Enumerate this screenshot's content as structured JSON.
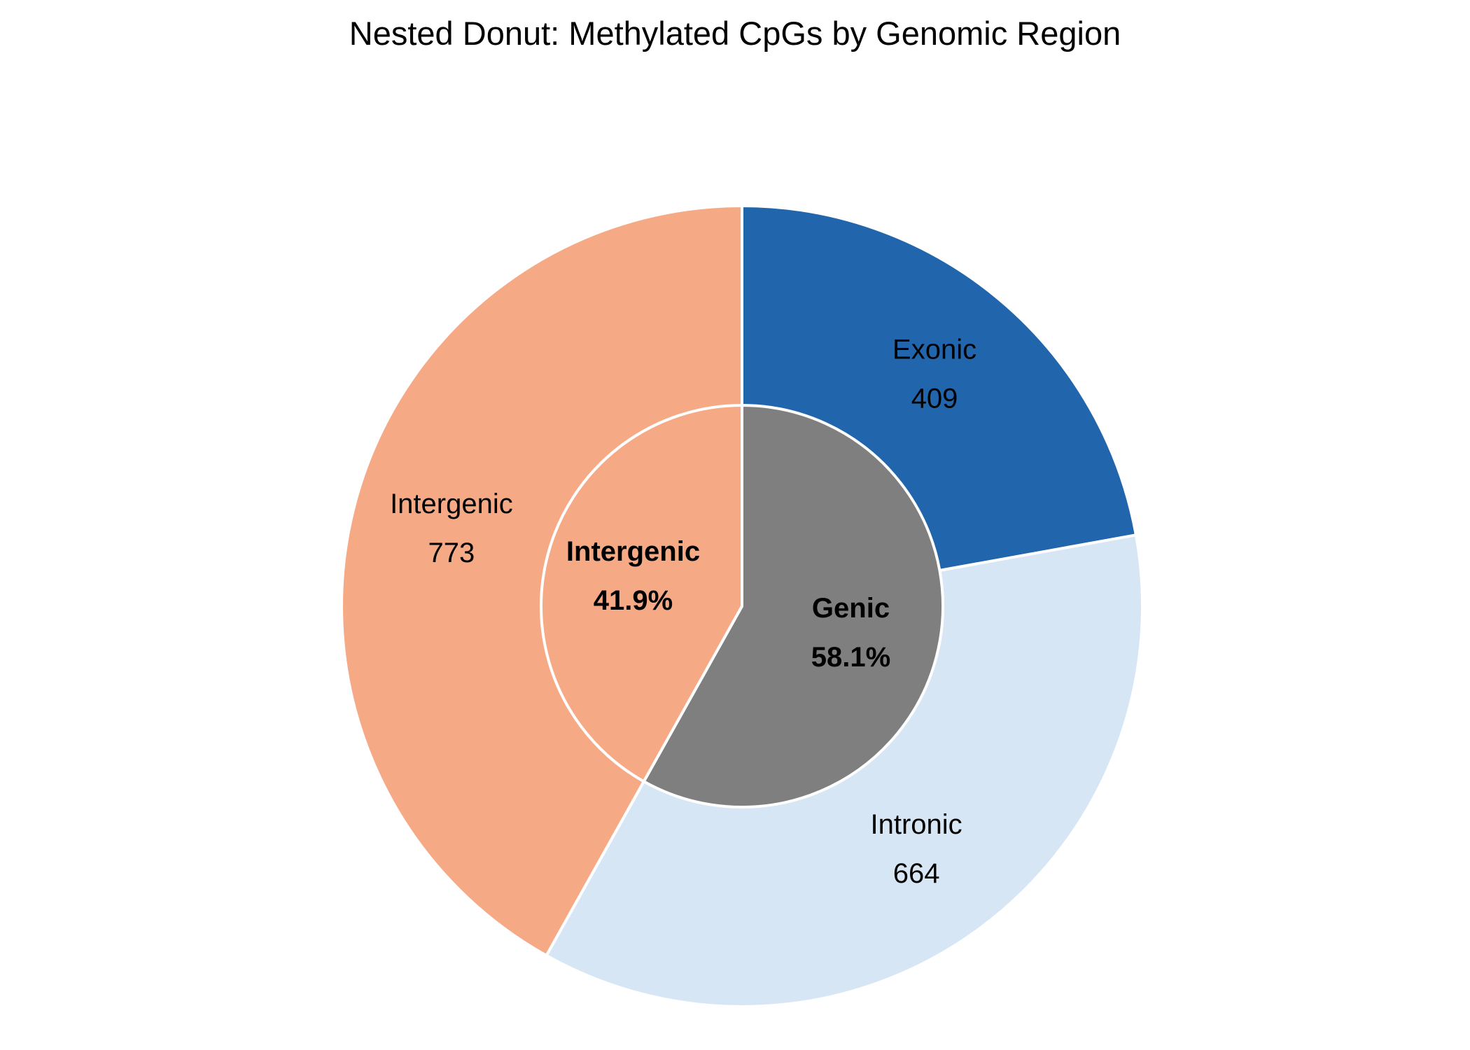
{
  "chart_data": {
    "type": "pie",
    "title": "Nested Donut: Methylated CpGs by Genomic Region",
    "outer_ring": [
      {
        "label": "Exonic",
        "value": 409,
        "value_label": "409",
        "color": "#2166ac"
      },
      {
        "label": "Intronic",
        "value": 664,
        "value_label": "664",
        "color": "#d6e6f5"
      },
      {
        "label": "Intergenic",
        "value": 773,
        "value_label": "773",
        "color": "#f6a985"
      }
    ],
    "inner_ring": [
      {
        "label": "Genic",
        "value": 1073,
        "percent_label": "58.1%",
        "color": "#7f7f7f"
      },
      {
        "label": "Intergenic",
        "value": 773,
        "percent_label": "41.9%",
        "color": "#f6a985"
      }
    ],
    "start": "top",
    "direction": "clockwise"
  }
}
